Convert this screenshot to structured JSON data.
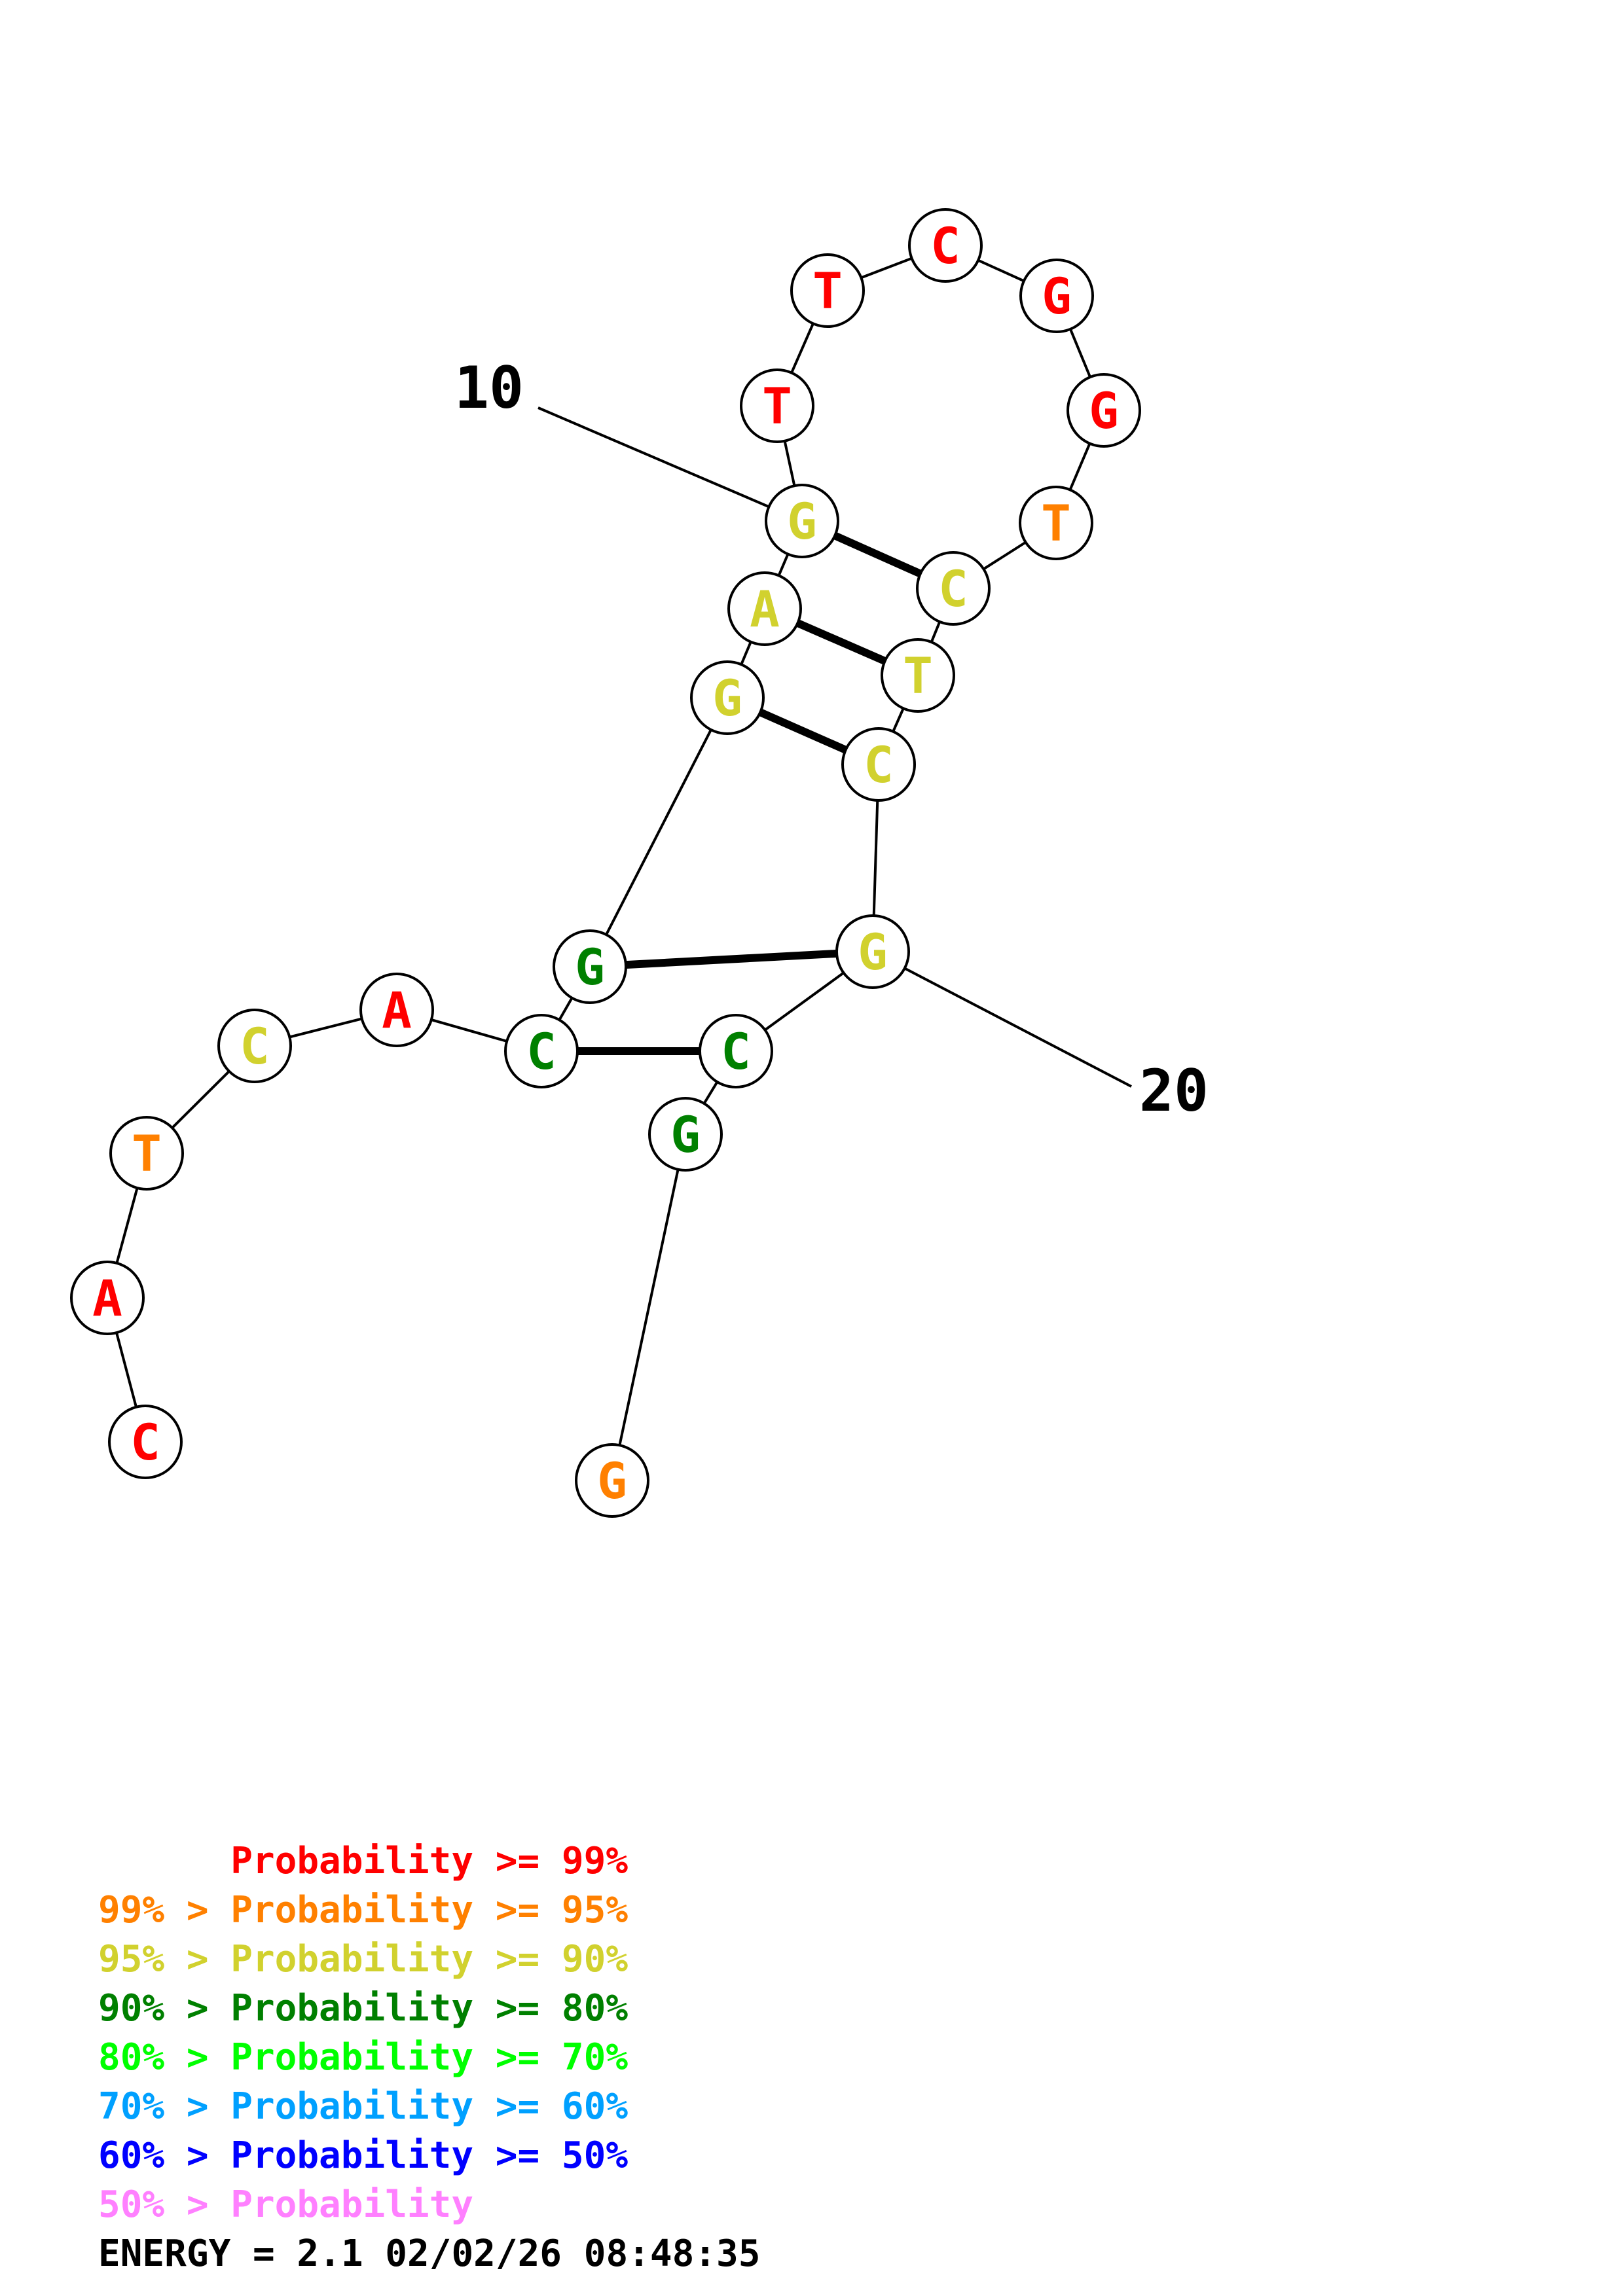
{
  "sequence": [
    {
      "base": "C",
      "color": "#ff0000"
    },
    {
      "base": "A",
      "color": "#ff0000"
    },
    {
      "base": "T",
      "color": "#ff8000"
    },
    {
      "base": "C",
      "color": "#d1d12e"
    },
    {
      "base": "A",
      "color": "#ff0000"
    },
    {
      "base": "C",
      "color": "#008000"
    },
    {
      "base": "G",
      "color": "#008000"
    },
    {
      "base": "G",
      "color": "#d1d12e"
    },
    {
      "base": "A",
      "color": "#d1d12e"
    },
    {
      "base": "G",
      "color": "#d1d12e"
    },
    {
      "base": "T",
      "color": "#ff0000"
    },
    {
      "base": "T",
      "color": "#ff0000"
    },
    {
      "base": "C",
      "color": "#ff0000"
    },
    {
      "base": "G",
      "color": "#ff0000"
    },
    {
      "base": "G",
      "color": "#ff0000"
    },
    {
      "base": "T",
      "color": "#ff8000"
    },
    {
      "base": "C",
      "color": "#d1d12e"
    },
    {
      "base": "T",
      "color": "#d1d12e"
    },
    {
      "base": "C",
      "color": "#d1d12e"
    },
    {
      "base": "G",
      "color": "#d1d12e"
    },
    {
      "base": "C",
      "color": "#008000"
    },
    {
      "base": "G",
      "color": "#008000"
    },
    {
      "base": "G",
      "color": "#ff8000"
    }
  ],
  "base_pairs": [
    [
      6,
      21
    ],
    [
      7,
      20
    ],
    [
      8,
      19
    ],
    [
      9,
      18
    ],
    [
      10,
      17
    ]
  ],
  "position_labels": [
    {
      "text": "10",
      "position": 10
    },
    {
      "text": "20",
      "position": 20
    }
  ],
  "legend": [
    {
      "prefix": "",
      "text": "Probability >= 99%",
      "color": "#ff0000"
    },
    {
      "prefix": "99% > ",
      "text": "Probability >= 95%",
      "color": "#ff8000"
    },
    {
      "prefix": "95% > ",
      "text": "Probability >= 90%",
      "color": "#d1d12e"
    },
    {
      "prefix": "90% > ",
      "text": "Probability >= 80%",
      "color": "#008000"
    },
    {
      "prefix": "80% > ",
      "text": "Probability >= 70%",
      "color": "#00ff00"
    },
    {
      "prefix": "70% > ",
      "text": "Probability >= 60%",
      "color": "#00a0ff"
    },
    {
      "prefix": "60% > ",
      "text": "Probability >= 50%",
      "color": "#0000ff"
    },
    {
      "prefix": "50% > ",
      "text": "Probability",
      "color": "#ff80ff"
    }
  ],
  "energy_line": "ENERGY = 2.1  02/02/26 08:48:35"
}
